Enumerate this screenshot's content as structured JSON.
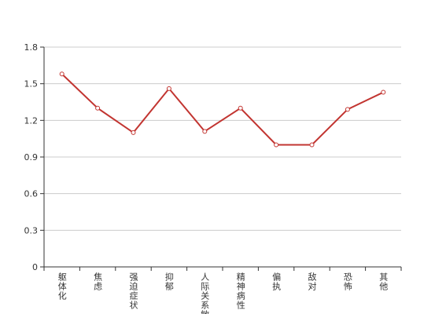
{
  "chart_data": {
    "type": "line",
    "categories": [
      "躯体化",
      "焦虑",
      "强迫症状",
      "抑郁",
      "人际关系敏感",
      "精神病性",
      "偏执",
      "敌对",
      "恐怖",
      "其他"
    ],
    "series": [
      {
        "color": "#c23531",
        "values": [
          1.58,
          1.3,
          1.1,
          1.46,
          1.11,
          1.3,
          1.0,
          1.0,
          1.29,
          1.43
        ]
      }
    ],
    "ylim": [
      0,
      1.8
    ],
    "yticks": [
      0,
      0.3,
      0.6,
      0.9,
      1.2,
      1.5,
      1.8
    ],
    "grid": true
  }
}
